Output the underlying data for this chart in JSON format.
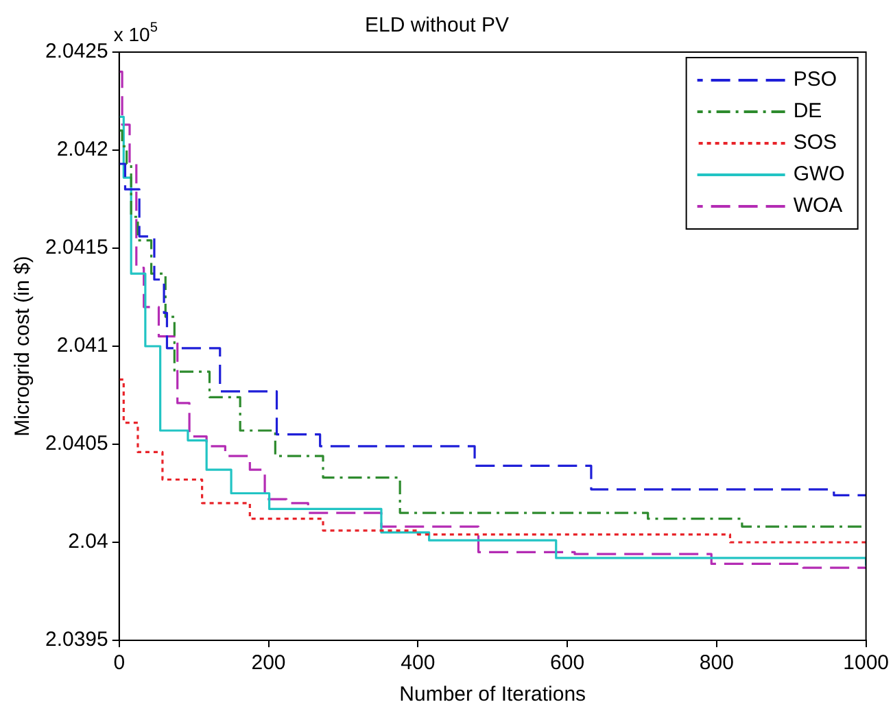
{
  "chart_data": {
    "type": "step",
    "title": "ELD without PV",
    "xlabel": "Number of Iterations",
    "ylabel": "Microgrid cost (in $)",
    "annotations": [
      "x 10$^{5}$"
    ],
    "xlim": [
      0,
      1000
    ],
    "xticks": [
      0,
      200,
      400,
      600,
      800,
      1000
    ],
    "ylim": [
      2.0395,
      2.0425
    ],
    "yticks": [
      2.0395,
      2.04,
      2.0405,
      2.041,
      2.0415,
      2.042,
      2.0425
    ],
    "grid": false,
    "legend": "top right",
    "series": [
      {
        "name": "PSO",
        "color": "#1f1fd8",
        "line_style": "dashed",
        "x": [
          0,
          8,
          27,
          47,
          60,
          64,
          135,
          211,
          269,
          476,
          632,
          957,
          1000
        ],
        "values": [
          2.04193,
          2.0418,
          2.04156,
          2.04134,
          2.04117,
          2.04099,
          2.04077,
          2.04055,
          2.04049,
          2.04039,
          2.04027,
          2.04024,
          2.04024
        ]
      },
      {
        "name": "DE",
        "color": "#2e8b2e",
        "line_style": "dashdot",
        "x": [
          0,
          4,
          10,
          16,
          25,
          43,
          62,
          74,
          121,
          162,
          209,
          273,
          376,
          708,
          834,
          1000
        ],
        "values": [
          2.0421,
          2.04202,
          2.04193,
          2.04166,
          2.04154,
          2.04137,
          2.04115,
          2.04087,
          2.04074,
          2.04057,
          2.04044,
          2.04033,
          2.04015,
          2.04012,
          2.04008,
          2.04008
        ]
      },
      {
        "name": "SOS",
        "color": "#e8242a",
        "line_style": "dotted",
        "x": [
          0,
          6,
          25,
          58,
          111,
          175,
          273,
          400,
          818,
          1000
        ],
        "values": [
          2.04083,
          2.04061,
          2.04046,
          2.04032,
          2.0402,
          2.04012,
          2.04006,
          2.04004,
          2.04,
          2.04
        ]
      },
      {
        "name": "GWO",
        "color": "#22c4c4",
        "line_style": "solid",
        "x": [
          0,
          6,
          16,
          35,
          55,
          92,
          117,
          150,
          201,
          351,
          415,
          585,
          1000
        ],
        "values": [
          2.04217,
          2.04186,
          2.04137,
          2.041,
          2.04057,
          2.04052,
          2.04037,
          2.04025,
          2.04017,
          2.04005,
          2.04001,
          2.03992,
          2.03988
        ]
      },
      {
        "name": "WOA",
        "color": "#b42cb4",
        "line_style": "dashed",
        "x": [
          0,
          4,
          14,
          23,
          33,
          53,
          78,
          94,
          117,
          142,
          175,
          195,
          224,
          253,
          351,
          481,
          610,
          793,
          916,
          1000
        ],
        "values": [
          2.0424,
          2.04213,
          2.04193,
          2.0414,
          2.0412,
          2.04105,
          2.04071,
          2.04054,
          2.04049,
          2.04044,
          2.04037,
          2.04022,
          2.0402,
          2.04015,
          2.04008,
          2.03995,
          2.03994,
          2.03989,
          2.03987,
          2.03987
        ]
      }
    ]
  }
}
